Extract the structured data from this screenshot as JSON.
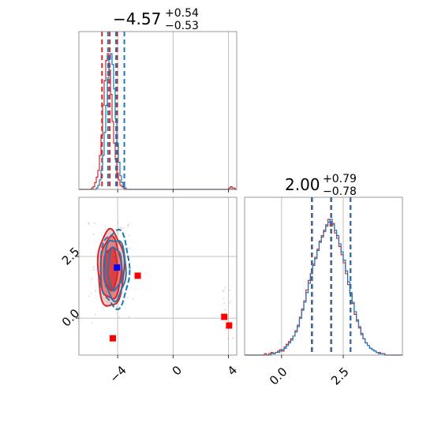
{
  "chart_data": {
    "type": "corner",
    "parameters": [
      {
        "name": "",
        "title": {
          "median": "−4.57",
          "plus": "+0.54",
          "minus": "−0.53"
        },
        "range": [
          -6.8,
          4.6
        ],
        "ticks": [
          -4,
          0,
          4
        ],
        "tick_labels": [
          "−4",
          "0",
          "4"
        ]
      },
      {
        "name": "",
        "title": {
          "median": "2.00",
          "plus": "+0.79",
          "minus": "−0.78"
        },
        "range": [
          -1.5,
          4.9
        ],
        "ticks": [
          0.0,
          2.5
        ],
        "tick_labels": [
          "0.0",
          "2.5"
        ]
      }
    ],
    "series": [
      {
        "color": "#d62728",
        "quantiles_p1": [
          -5.13,
          -4.57,
          -4.03
        ],
        "quantiles_p2": [
          1.22,
          2.0,
          2.79
        ],
        "hist_p1": [
          0,
          0,
          0,
          0,
          0,
          0,
          0,
          0,
          1,
          2,
          5,
          9,
          14,
          25,
          40,
          62,
          80,
          95,
          100,
          88,
          70,
          50,
          34,
          22,
          12,
          7,
          3,
          2,
          1,
          0,
          0,
          0,
          0,
          0,
          0,
          0,
          0,
          0,
          0,
          0,
          0,
          0,
          0,
          0,
          0,
          0,
          0,
          0,
          0,
          0,
          0,
          0,
          0,
          0,
          0,
          0,
          0,
          0,
          0,
          0,
          0,
          0,
          0,
          0,
          0,
          0,
          0,
          0,
          0,
          0,
          0,
          0,
          0,
          0,
          0,
          0,
          0,
          0,
          0,
          0,
          0,
          0,
          0,
          0,
          0,
          0,
          0,
          0,
          0,
          0,
          0,
          0,
          0,
          0,
          0,
          1,
          2,
          1,
          1,
          0
        ],
        "hist_p2": [
          0,
          0,
          0,
          0,
          0,
          0,
          0,
          0,
          0,
          1,
          0,
          1,
          2,
          1,
          2,
          3,
          4,
          3,
          6,
          8,
          10,
          12,
          14,
          18,
          22,
          28,
          34,
          40,
          48,
          55,
          60,
          67,
          72,
          78,
          84,
          88,
          92,
          96,
          100,
          95,
          97,
          90,
          86,
          80,
          74,
          68,
          60,
          52,
          45,
          38,
          30,
          25,
          20,
          15,
          12,
          9,
          7,
          5,
          4,
          3,
          2,
          2,
          1,
          1,
          0,
          0,
          0,
          0,
          0,
          0,
          0,
          0
        ],
        "contour_levels": [
          {
            "cx": -4.5,
            "cy": 2.0,
            "rx": 0.95,
            "ry": 1.55,
            "fill_opacity": 0.25
          },
          {
            "cx": -4.5,
            "cy": 2.0,
            "rx": 0.75,
            "ry": 1.25,
            "fill_opacity": 0.45
          },
          {
            "cx": -4.5,
            "cy": 2.0,
            "rx": 0.5,
            "ry": 0.85,
            "fill_opacity": 0.7
          }
        ],
        "markers": [
          {
            "x": -4.35,
            "y": -0.82
          },
          {
            "x": -2.55,
            "y": 1.72
          },
          {
            "x": 3.7,
            "y": 0.05
          },
          {
            "x": 4.05,
            "y": -0.3
          }
        ]
      },
      {
        "color": "#1f77b4",
        "quantiles_p1": [
          -4.7,
          -4.12,
          -3.52
        ],
        "quantiles_p2": [
          1.24,
          2.02,
          2.8
        ],
        "hist_p1": [
          0,
          0,
          0,
          0,
          0,
          0,
          0,
          0,
          0,
          0,
          0,
          1,
          3,
          7,
          14,
          25,
          42,
          62,
          82,
          96,
          100,
          92,
          74,
          52,
          34,
          20,
          10,
          5,
          2,
          1,
          0,
          0,
          0,
          0,
          0,
          0,
          0,
          0,
          0,
          0,
          0,
          0,
          0,
          0,
          0,
          0,
          0,
          0,
          0,
          0,
          0,
          0,
          0,
          0,
          0,
          0,
          0,
          0,
          0,
          0,
          0,
          0,
          0,
          0,
          0,
          0,
          0,
          0,
          0,
          0,
          0,
          0,
          0,
          0,
          0,
          0,
          0,
          0,
          0,
          0,
          0,
          0,
          0,
          0,
          0,
          0,
          0,
          0,
          0,
          0,
          0,
          0,
          0,
          0,
          0,
          0,
          0,
          0,
          0,
          0
        ],
        "hist_p2": [
          0,
          0,
          0,
          0,
          0,
          0,
          0,
          0,
          0,
          0,
          0,
          0,
          1,
          1,
          2,
          2,
          3,
          4,
          5,
          7,
          9,
          11,
          14,
          17,
          21,
          27,
          33,
          39,
          46,
          53,
          60,
          66,
          71,
          77,
          83,
          87,
          91,
          95,
          98,
          100,
          96,
          92,
          88,
          82,
          76,
          70,
          62,
          54,
          46,
          39,
          32,
          26,
          21,
          16,
          12,
          9,
          7,
          5,
          4,
          3,
          2,
          1,
          1,
          1,
          0,
          0,
          0,
          0,
          0,
          0,
          0,
          0
        ],
        "contour_levels": [
          {
            "cx": -4.2,
            "cy": 2.0,
            "rx": 1.05,
            "ry": 1.55
          },
          {
            "cx": -4.2,
            "cy": 2.0,
            "rx": 0.78,
            "ry": 1.22
          },
          {
            "cx": -4.2,
            "cy": 2.0,
            "rx": 0.52,
            "ry": 0.85
          }
        ],
        "markers": [
          {
            "x": -4.05,
            "y": 2.05
          }
        ]
      }
    ],
    "grid": true
  }
}
